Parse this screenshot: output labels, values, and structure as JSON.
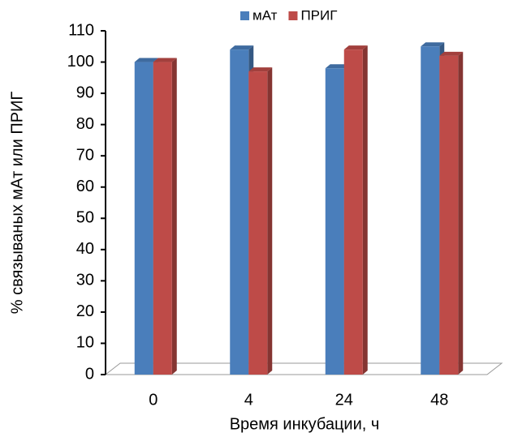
{
  "chart_data": {
    "type": "bar3d",
    "categories": [
      "0",
      "4",
      "24",
      "48"
    ],
    "series": [
      {
        "name": "мАт",
        "color": "#4a7ebb",
        "values": [
          100,
          104,
          98,
          105
        ]
      },
      {
        "name": "ПРИГ",
        "color": "#be4b48",
        "values": [
          100,
          97,
          104,
          102
        ]
      }
    ],
    "y_label": "% связываных мАт или ПРИГ",
    "x_label": "Время инкубации, ч",
    "ylim": [
      0,
      110
    ],
    "yticks": [
      0,
      10,
      20,
      30,
      40,
      50,
      60,
      70,
      80,
      90,
      100,
      110
    ],
    "legend": "top"
  }
}
